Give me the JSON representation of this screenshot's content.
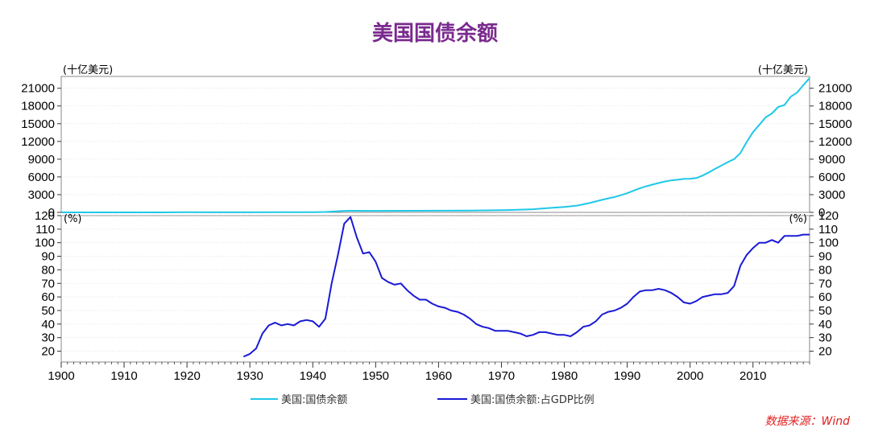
{
  "title": "美国国债余额",
  "source": "数据来源：Wind",
  "chart_data": [
    {
      "type": "line",
      "panel": "top",
      "ylabel_left": "(十亿美元)",
      "ylabel_right": "(十亿美元)",
      "yticks": [
        0,
        3000,
        6000,
        9000,
        12000,
        15000,
        18000,
        21000
      ],
      "ylim": [
        0,
        23000
      ],
      "xlim": [
        1900,
        2019
      ],
      "series": [
        {
          "name": "美国:国债余额",
          "color": "#1ec8e8",
          "points": [
            [
              1900,
              2
            ],
            [
              1910,
              2
            ],
            [
              1916,
              3
            ],
            [
              1920,
              26
            ],
            [
              1930,
              16
            ],
            [
              1935,
              29
            ],
            [
              1940,
              43
            ],
            [
              1942,
              72
            ],
            [
              1943,
              137
            ],
            [
              1945,
              259
            ],
            [
              1946,
              269
            ],
            [
              1950,
              257
            ],
            [
              1955,
              274
            ],
            [
              1957,
              270
            ],
            [
              1960,
              290
            ],
            [
              1965,
              317
            ],
            [
              1970,
              371
            ],
            [
              1972,
              427
            ],
            [
              1975,
              533
            ],
            [
              1977,
              699
            ],
            [
              1980,
              908
            ],
            [
              1982,
              1142
            ],
            [
              1984,
              1572
            ],
            [
              1986,
              2125
            ],
            [
              1988,
              2602
            ],
            [
              1990,
              3233
            ],
            [
              1991,
              3665
            ],
            [
              1992,
              4065
            ],
            [
              1993,
              4411
            ],
            [
              1994,
              4693
            ],
            [
              1995,
              4974
            ],
            [
              1996,
              5225
            ],
            [
              1997,
              5413
            ],
            [
              1998,
              5526
            ],
            [
              1999,
              5656
            ],
            [
              2000,
              5674
            ],
            [
              2001,
              5807
            ],
            [
              2002,
              6228
            ],
            [
              2003,
              6783
            ],
            [
              2004,
              7379
            ],
            [
              2005,
              7933
            ],
            [
              2006,
              8507
            ],
            [
              2007,
              9008
            ],
            [
              2008,
              10025
            ],
            [
              2009,
              11910
            ],
            [
              2010,
              13562
            ],
            [
              2011,
              14790
            ],
            [
              2012,
              16066
            ],
            [
              2013,
              16738
            ],
            [
              2014,
              17824
            ],
            [
              2015,
              18151
            ],
            [
              2016,
              19573
            ],
            [
              2017,
              20245
            ],
            [
              2018,
              21516
            ],
            [
              2019,
              22719
            ]
          ]
        }
      ]
    },
    {
      "type": "line",
      "panel": "bottom",
      "ylabel_left": "(%)",
      "ylabel_right": "(%)",
      "yticks": [
        20,
        30,
        40,
        50,
        60,
        70,
        80,
        90,
        100,
        110,
        120
      ],
      "ylim": [
        12,
        120
      ],
      "xlim": [
        1900,
        2019
      ],
      "xticks": [
        1900,
        1910,
        1920,
        1930,
        1940,
        1950,
        1960,
        1970,
        1980,
        1990,
        2000,
        2010
      ],
      "series": [
        {
          "name": "美国:国债余额:占GDP比例",
          "color": "#1a1ad6",
          "points": [
            [
              1929,
              16
            ],
            [
              1930,
              18
            ],
            [
              1931,
              22
            ],
            [
              1932,
              33
            ],
            [
              1933,
              39
            ],
            [
              1934,
              41
            ],
            [
              1935,
              39
            ],
            [
              1936,
              40
            ],
            [
              1937,
              39
            ],
            [
              1938,
              42
            ],
            [
              1939,
              43
            ],
            [
              1940,
              42
            ],
            [
              1941,
              38
            ],
            [
              1942,
              44
            ],
            [
              1943,
              70
            ],
            [
              1944,
              91
            ],
            [
              1945,
              114
            ],
            [
              1946,
              119
            ],
            [
              1947,
              104
            ],
            [
              1948,
              92
            ],
            [
              1949,
              93
            ],
            [
              1950,
              86
            ],
            [
              1951,
              74
            ],
            [
              1952,
              71
            ],
            [
              1953,
              69
            ],
            [
              1954,
              70
            ],
            [
              1955,
              65
            ],
            [
              1956,
              61
            ],
            [
              1957,
              58
            ],
            [
              1958,
              58
            ],
            [
              1959,
              55
            ],
            [
              1960,
              53
            ],
            [
              1961,
              52
            ],
            [
              1962,
              50
            ],
            [
              1963,
              49
            ],
            [
              1964,
              47
            ],
            [
              1965,
              44
            ],
            [
              1966,
              40
            ],
            [
              1967,
              38
            ],
            [
              1968,
              37
            ],
            [
              1969,
              35
            ],
            [
              1970,
              35
            ],
            [
              1971,
              35
            ],
            [
              1972,
              34
            ],
            [
              1973,
              33
            ],
            [
              1974,
              31
            ],
            [
              1975,
              32
            ],
            [
              1976,
              34
            ],
            [
              1977,
              34
            ],
            [
              1978,
              33
            ],
            [
              1979,
              32
            ],
            [
              1980,
              32
            ],
            [
              1981,
              31
            ],
            [
              1982,
              34
            ],
            [
              1983,
              38
            ],
            [
              1984,
              39
            ],
            [
              1985,
              42
            ],
            [
              1986,
              47
            ],
            [
              1987,
              49
            ],
            [
              1988,
              50
            ],
            [
              1989,
              52
            ],
            [
              1990,
              55
            ],
            [
              1991,
              60
            ],
            [
              1992,
              64
            ],
            [
              1993,
              65
            ],
            [
              1994,
              65
            ],
            [
              1995,
              66
            ],
            [
              1996,
              65
            ],
            [
              1997,
              63
            ],
            [
              1998,
              60
            ],
            [
              1999,
              56
            ],
            [
              2000,
              55
            ],
            [
              2001,
              57
            ],
            [
              2002,
              60
            ],
            [
              2003,
              61
            ],
            [
              2004,
              62
            ],
            [
              2005,
              62
            ],
            [
              2006,
              63
            ],
            [
              2007,
              68
            ],
            [
              2008,
              83
            ],
            [
              2009,
              91
            ],
            [
              2010,
              96
            ],
            [
              2011,
              100
            ],
            [
              2012,
              100
            ],
            [
              2013,
              102
            ],
            [
              2014,
              100
            ],
            [
              2015,
              105
            ],
            [
              2016,
              105
            ],
            [
              2017,
              105
            ],
            [
              2018,
              106
            ],
            [
              2019,
              106
            ]
          ]
        }
      ]
    }
  ]
}
